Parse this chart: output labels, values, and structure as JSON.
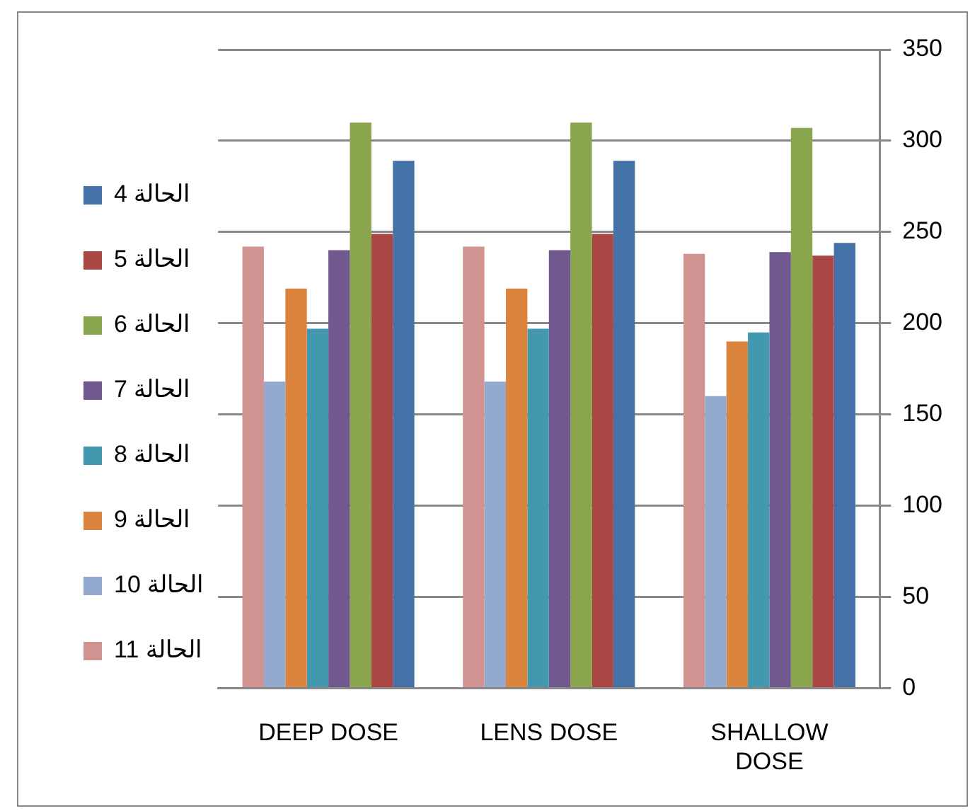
{
  "chart_data": {
    "type": "bar",
    "categories": [
      "DEEP DOSE",
      "LENS DOSE",
      "SHALLOW DOSE"
    ],
    "series": [
      {
        "name": "الحالة 11",
        "color": "#d19392",
        "values": [
          242,
          242,
          238
        ]
      },
      {
        "name": "الحالة 10",
        "color": "#93a9cf",
        "values": [
          168,
          168,
          160
        ]
      },
      {
        "name": "الحالة 9",
        "color": "#db843d",
        "values": [
          219,
          219,
          190
        ]
      },
      {
        "name": "الحالة 8",
        "color": "#4198af",
        "values": [
          197,
          197,
          195
        ]
      },
      {
        "name": "الحالة 7",
        "color": "#71588f",
        "values": [
          240,
          240,
          239
        ]
      },
      {
        "name": "الحالة 6",
        "color": "#89a54e",
        "values": [
          310,
          310,
          307
        ]
      },
      {
        "name": "الحالة 5",
        "color": "#aa4643",
        "values": [
          249,
          249,
          237
        ]
      },
      {
        "name": "الحالة 4",
        "color": "#4572a7",
        "values": [
          289,
          289,
          244
        ]
      }
    ],
    "ylim": [
      0,
      350
    ],
    "yticks": [
      0,
      50,
      100,
      150,
      200,
      250,
      300,
      350
    ],
    "grid": "y",
    "legend": "left"
  }
}
